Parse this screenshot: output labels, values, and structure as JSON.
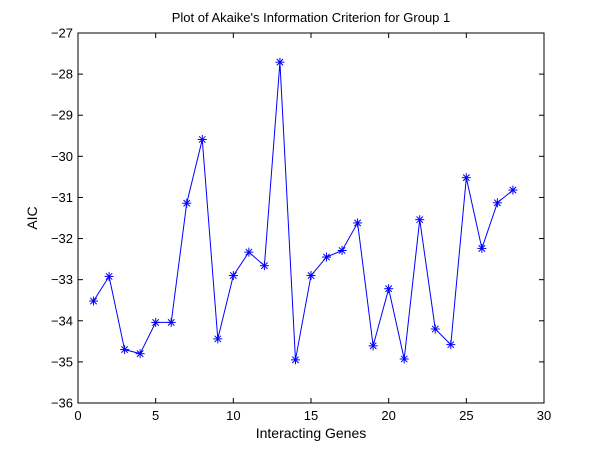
{
  "chart_data": {
    "type": "line",
    "title": "Plot of Akaike's Information Criterion for Group 1",
    "xlabel": "Interacting Genes",
    "ylabel": "AIC",
    "xlim": [
      0,
      30
    ],
    "ylim": [
      -36,
      -27
    ],
    "xticks": [
      0,
      5,
      10,
      15,
      20,
      25,
      30
    ],
    "yticks": [
      -36,
      -35,
      -34,
      -33,
      -32,
      -31,
      -30,
      -29,
      -28,
      -27
    ],
    "xtick_labels": [
      "0",
      "5",
      "10",
      "15",
      "20",
      "25",
      "30"
    ],
    "ytick_labels": [
      "−36",
      "−35",
      "−34",
      "−33",
      "−32",
      "−31",
      "−30",
      "−29",
      "−28",
      "−27"
    ],
    "grid": false,
    "marker": "asterisk",
    "color": "#0000ff",
    "series": [
      {
        "x": [
          1,
          2,
          3,
          4,
          5,
          6,
          7,
          8,
          9,
          10,
          11,
          12,
          13,
          14,
          15,
          16,
          17,
          18,
          19,
          20,
          21,
          22,
          23,
          24,
          25,
          26,
          27,
          28
        ],
        "values": [
          -33.52,
          -32.92,
          -34.7,
          -34.8,
          -34.04,
          -34.04,
          -31.14,
          -29.59,
          -34.44,
          -32.9,
          -32.33,
          -32.66,
          -27.71,
          -34.95,
          -32.9,
          -32.45,
          -32.29,
          -31.62,
          -34.61,
          -33.22,
          -34.93,
          -31.54,
          -34.2,
          -34.58,
          -30.52,
          -32.24,
          -31.13,
          -30.82
        ]
      }
    ]
  }
}
